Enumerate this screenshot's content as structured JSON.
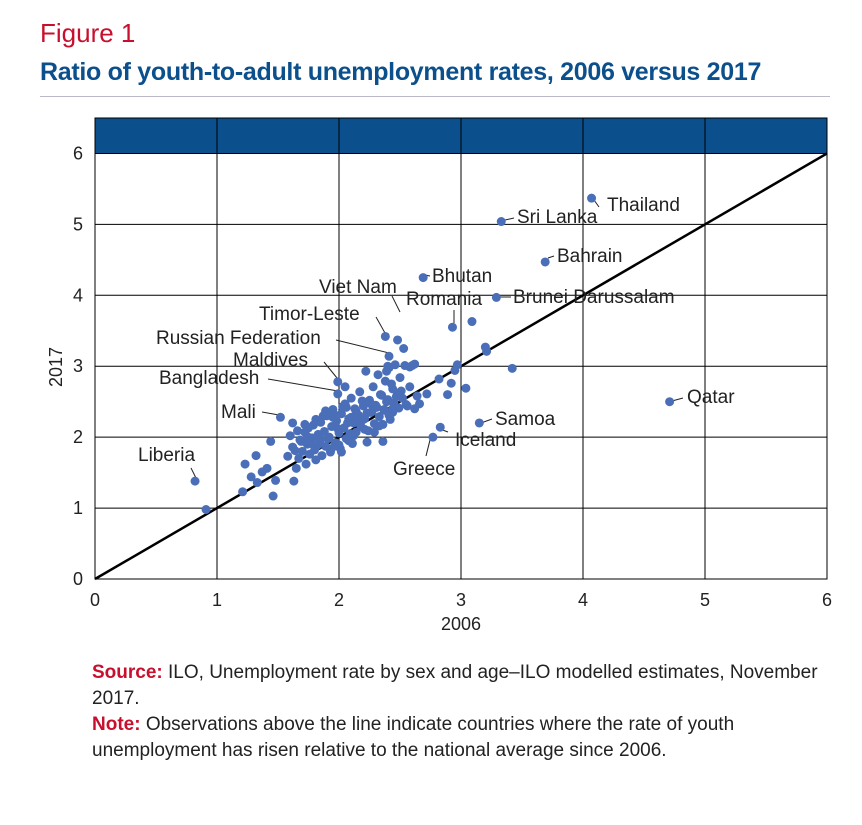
{
  "figure_label": "Figure 1",
  "title": "Ratio of youth-to-adult unemployment rates, 2006 versus 2017",
  "source_label": "Source:",
  "source_text": " ILO, Unemployment rate by sex and age–ILO modelled estimates, November 2017.",
  "note_label": "Note:",
  "note_text": " Observations above the line indicate countries where the rate of youth unemployment has risen relative to the national average since 2006.",
  "colors": {
    "title": "#0b4f8c",
    "accent": "#c8102e",
    "points": "#4a6fb8",
    "band": "#0b4f8c",
    "line": "#000000"
  },
  "chart_data": {
    "type": "scatter",
    "xlabel": "2006",
    "ylabel": "2017",
    "xlim": [
      0,
      6
    ],
    "ylim": [
      0,
      6
    ],
    "xticks": [
      0,
      1,
      2,
      3,
      4,
      5,
      6
    ],
    "yticks": [
      0,
      1,
      2,
      3,
      4,
      5,
      6
    ],
    "grid": true,
    "reference_line": {
      "from": [
        0,
        0
      ],
      "to": [
        6,
        6
      ]
    },
    "labeled_points": [
      {
        "label": "Thailand",
        "x": 4.07,
        "y": 5.37
      },
      {
        "label": "Sri Lanka",
        "x": 3.33,
        "y": 5.04
      },
      {
        "label": "Bahrain",
        "x": 3.69,
        "y": 4.47
      },
      {
        "label": "Bhutan",
        "x": 2.69,
        "y": 4.25
      },
      {
        "label": "Brunei Darussalam",
        "x": 3.29,
        "y": 3.97
      },
      {
        "label": "Romania",
        "x": 2.93,
        "y": 3.55
      },
      {
        "label": "Viet Nam",
        "x": 2.48,
        "y": 3.37
      },
      {
        "label": "Timor-Leste",
        "x": 2.38,
        "y": 3.42
      },
      {
        "label": "Russian Federation",
        "x": 2.41,
        "y": 3.14
      },
      {
        "label": "Maldives",
        "x": 1.99,
        "y": 2.78
      },
      {
        "label": "Bangladesh",
        "x": 1.99,
        "y": 2.61
      },
      {
        "label": "Mali",
        "x": 1.52,
        "y": 2.28
      },
      {
        "label": "Liberia",
        "x": 0.82,
        "y": 1.38
      },
      {
        "label": "Qatar",
        "x": 4.71,
        "y": 2.5
      },
      {
        "label": "Samoa",
        "x": 3.15,
        "y": 2.2
      },
      {
        "label": "Iceland",
        "x": 2.83,
        "y": 2.14
      },
      {
        "label": "Greece",
        "x": 2.77,
        "y": 2.0
      }
    ],
    "points": [
      [
        0.91,
        0.98
      ],
      [
        1.21,
        1.23
      ],
      [
        1.33,
        1.36
      ],
      [
        1.46,
        1.17
      ],
      [
        1.28,
        1.44
      ],
      [
        1.37,
        1.51
      ],
      [
        1.23,
        1.62
      ],
      [
        1.41,
        1.56
      ],
      [
        1.48,
        1.39
      ],
      [
        1.32,
        1.74
      ],
      [
        1.44,
        1.94
      ],
      [
        1.58,
        1.73
      ],
      [
        1.6,
        2.02
      ],
      [
        1.62,
        1.86
      ],
      [
        1.62,
        2.2
      ],
      [
        1.63,
        1.38
      ],
      [
        1.65,
        1.56
      ],
      [
        1.67,
        1.7
      ],
      [
        1.68,
        1.96
      ],
      [
        1.7,
        1.8
      ],
      [
        1.72,
        2.07
      ],
      [
        1.73,
        1.62
      ],
      [
        1.74,
        1.9
      ],
      [
        1.75,
        2.13
      ],
      [
        1.76,
        1.76
      ],
      [
        1.78,
        1.99
      ],
      [
        1.79,
        2.17
      ],
      [
        1.8,
        1.82
      ],
      [
        1.81,
        1.68
      ],
      [
        1.83,
        2.04
      ],
      [
        1.84,
        1.93
      ],
      [
        1.85,
        2.21
      ],
      [
        1.86,
        1.74
      ],
      [
        1.88,
        2.08
      ],
      [
        1.89,
        1.87
      ],
      [
        1.9,
        2.3
      ],
      [
        1.92,
        2.0
      ],
      [
        1.93,
        1.79
      ],
      [
        1.94,
        2.15
      ],
      [
        1.95,
        2.39
      ],
      [
        1.97,
        1.92
      ],
      [
        1.98,
        2.23
      ],
      [
        2.0,
        2.06
      ],
      [
        2.01,
        1.84
      ],
      [
        2.02,
        2.33
      ],
      [
        2.04,
        2.13
      ],
      [
        2.05,
        2.47
      ],
      [
        2.06,
        1.98
      ],
      [
        2.08,
        2.26
      ],
      [
        2.09,
        2.05
      ],
      [
        2.1,
        2.55
      ],
      [
        2.12,
        2.2
      ],
      [
        2.13,
        2.4
      ],
      [
        2.14,
        2.07
      ],
      [
        2.16,
        2.31
      ],
      [
        2.17,
        2.64
      ],
      [
        2.18,
        2.15
      ],
      [
        2.2,
        2.44
      ],
      [
        2.21,
        2.26
      ],
      [
        2.22,
        2.93
      ],
      [
        2.24,
        2.09
      ],
      [
        2.25,
        2.52
      ],
      [
        2.26,
        2.35
      ],
      [
        2.28,
        2.71
      ],
      [
        2.29,
        2.19
      ],
      [
        2.3,
        2.45
      ],
      [
        2.32,
        2.88
      ],
      [
        2.33,
        2.29
      ],
      [
        2.34,
        2.6
      ],
      [
        2.36,
        1.94
      ],
      [
        2.37,
        2.38
      ],
      [
        2.38,
        2.79
      ],
      [
        2.4,
        2.53
      ],
      [
        2.41,
        2.98
      ],
      [
        2.42,
        2.25
      ],
      [
        2.44,
        2.68
      ],
      [
        2.45,
        2.48
      ],
      [
        2.46,
        3.02
      ],
      [
        2.48,
        2.62
      ],
      [
        2.49,
        2.41
      ],
      [
        2.5,
        2.84
      ],
      [
        2.52,
        2.55
      ],
      [
        2.53,
        3.25
      ],
      [
        2.54,
        3.01
      ],
      [
        2.56,
        2.44
      ],
      [
        2.58,
        2.71
      ],
      [
        2.6,
        3.01
      ],
      [
        2.62,
        3.03
      ],
      [
        2.64,
        2.58
      ],
      [
        1.87,
        2.3
      ],
      [
        1.95,
        2.28
      ],
      [
        2.03,
        2.43
      ],
      [
        2.11,
        1.91
      ],
      [
        2.19,
        2.51
      ],
      [
        2.27,
        2.36
      ],
      [
        2.35,
        2.59
      ],
      [
        2.43,
        2.75
      ],
      [
        2.51,
        2.65
      ],
      [
        1.91,
        1.98
      ],
      [
        1.99,
        2.12
      ],
      [
        2.07,
        2.2
      ],
      [
        2.15,
        2.28
      ],
      [
        2.23,
        2.34
      ],
      [
        2.31,
        2.42
      ],
      [
        2.39,
        2.5
      ],
      [
        2.47,
        2.57
      ],
      [
        1.77,
        1.91
      ],
      [
        1.85,
        1.97
      ],
      [
        2.02,
        1.79
      ],
      [
        2.06,
        2.42
      ],
      [
        2.23,
        1.93
      ],
      [
        2.29,
        2.07
      ],
      [
        2.37,
        2.39
      ],
      [
        2.44,
        2.4
      ],
      [
        1.66,
        2.09
      ],
      [
        1.72,
        2.18
      ],
      [
        1.81,
        2.25
      ],
      [
        1.89,
        2.37
      ],
      [
        1.96,
        2.32
      ],
      [
        2.12,
        2.02
      ],
      [
        2.18,
        2.22
      ],
      [
        2.26,
        2.47
      ],
      [
        2.33,
        2.16
      ],
      [
        2.41,
        2.31
      ],
      [
        2.55,
        2.46
      ],
      [
        2.62,
        2.4
      ],
      [
        1.64,
        1.81
      ],
      [
        1.69,
        1.94
      ],
      [
        1.74,
        2.01
      ],
      [
        1.82,
        1.88
      ],
      [
        1.94,
        1.84
      ],
      [
        2.0,
        1.89
      ],
      [
        2.08,
        1.95
      ],
      [
        2.14,
        2.37
      ],
      [
        2.21,
        2.11
      ],
      [
        2.36,
        2.18
      ],
      [
        2.92,
        2.76
      ],
      [
        2.95,
        2.94
      ],
      [
        3.04,
        2.69
      ],
      [
        2.82,
        2.82
      ],
      [
        3.09,
        3.63
      ],
      [
        3.2,
        3.27
      ],
      [
        3.21,
        3.21
      ],
      [
        3.42,
        2.97
      ],
      [
        2.97,
        3.02
      ],
      [
        2.89,
        2.6
      ],
      [
        2.72,
        2.61
      ],
      [
        2.66,
        2.47
      ],
      [
        2.39,
        2.93
      ],
      [
        2.58,
        2.99
      ],
      [
        2.4,
        3.0
      ],
      [
        2.05,
        2.71
      ],
      [
        1.84,
        2.03
      ],
      [
        2.1,
        2.28
      ],
      [
        2.44,
        2.35
      ]
    ]
  }
}
